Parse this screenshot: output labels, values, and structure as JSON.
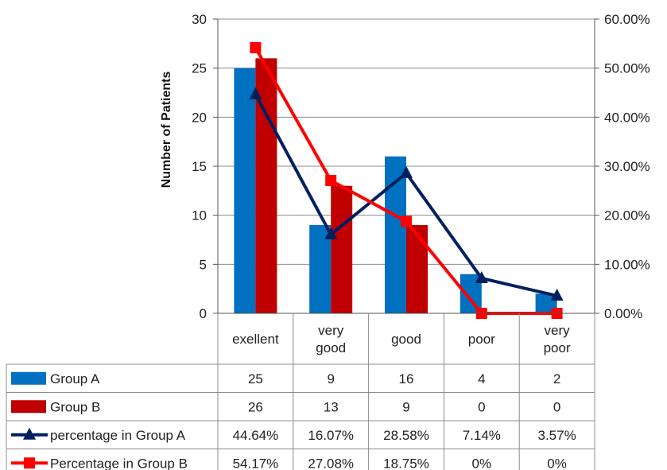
{
  "chart_data": {
    "type": "bar",
    "categories": [
      [
        "exellent"
      ],
      [
        "very",
        "good"
      ],
      [
        "good"
      ],
      [
        "poor"
      ],
      [
        "very",
        "poor"
      ]
    ],
    "ylabel": "Number of Patients",
    "ylim": [
      0,
      30
    ],
    "yticks": [
      "0",
      "5",
      "10",
      "15",
      "20",
      "25",
      "30"
    ],
    "y2lim": [
      0,
      60
    ],
    "y2ticks": [
      "0.00%",
      "10.00%",
      "20.00%",
      "30.00%",
      "40.00%",
      "50.00%",
      "60.00%"
    ],
    "grid": true,
    "legend": "data-table-below",
    "series": [
      {
        "name": "Group A",
        "kind": "bar",
        "axis": "left",
        "color": "#0070C0",
        "values": [
          25,
          9,
          16,
          4,
          2
        ],
        "labels": [
          "25",
          "9",
          "16",
          "4",
          "2"
        ]
      },
      {
        "name": "Group B",
        "kind": "bar",
        "axis": "left",
        "color": "#C00000",
        "values": [
          26,
          13,
          9,
          0,
          0
        ],
        "labels": [
          "26",
          "13",
          "9",
          "0",
          "0"
        ]
      },
      {
        "name": "percentage in Group A",
        "kind": "line",
        "marker": "triangle",
        "axis": "right",
        "color": "#002060",
        "values": [
          44.64,
          16.07,
          28.58,
          7.14,
          3.57
        ],
        "labels": [
          "44.64%",
          "16.07%",
          "28.58%",
          "7.14%",
          "3.57%"
        ]
      },
      {
        "name": "Percentage in Group B",
        "kind": "line",
        "marker": "square",
        "axis": "right",
        "color": "#FF0000",
        "values": [
          54.17,
          27.08,
          18.75,
          0,
          0
        ],
        "labels": [
          "54.17%",
          "27.08%",
          "18.75%",
          "0%",
          "0%"
        ]
      }
    ]
  }
}
